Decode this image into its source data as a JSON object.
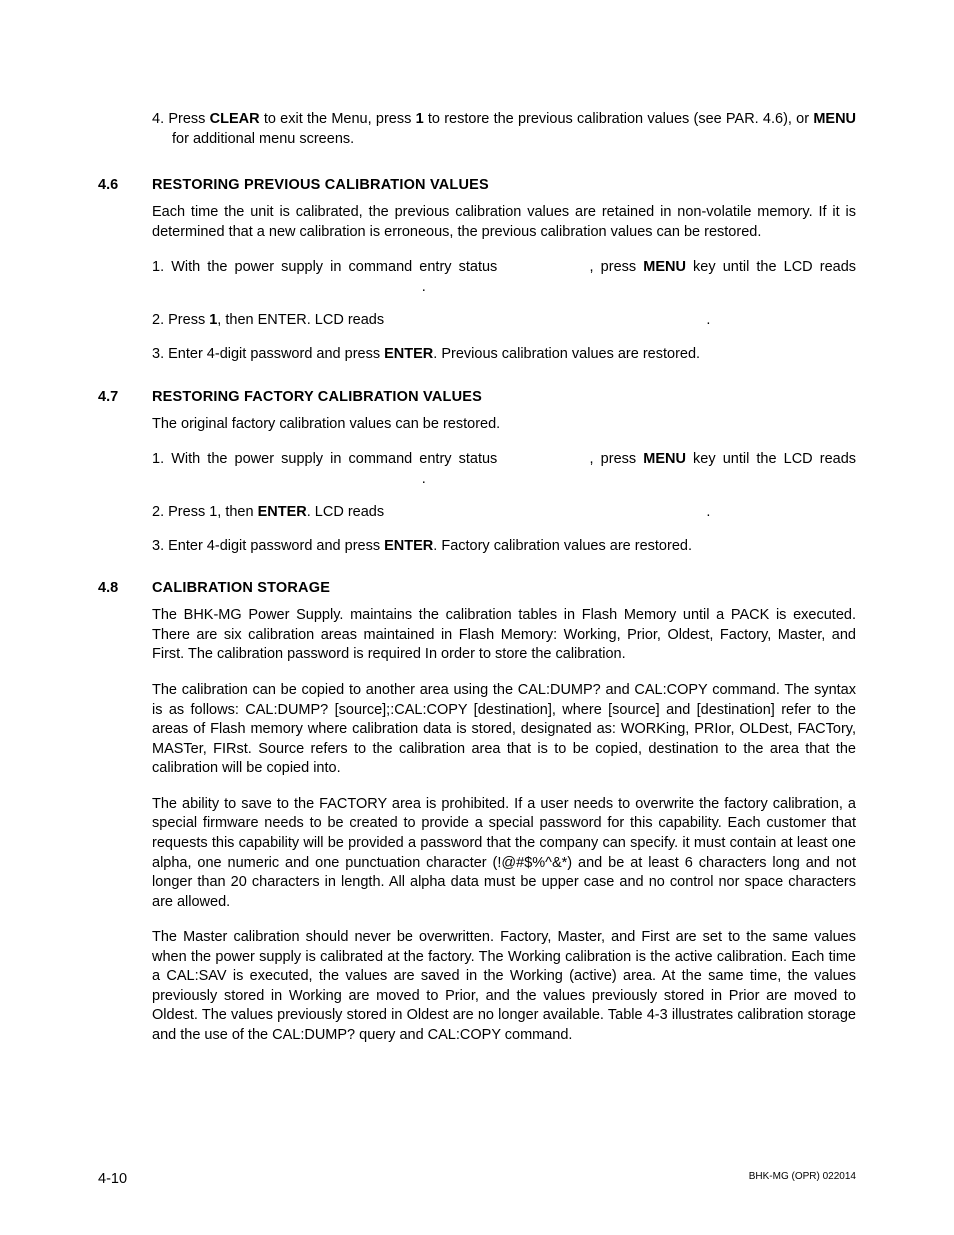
{
  "step4": {
    "num": "4.",
    "text_a": "Press ",
    "clear": "CLEAR",
    "text_b": " to exit the Menu, press ",
    "one": "1",
    "text_c": " to restore the previous calibration values (see PAR. 4.6), or ",
    "menu": "MENU",
    "text_d": " for additional menu screens."
  },
  "s46": {
    "num": "4.6",
    "title": "RESTORING PREVIOUS CALIBRATION VALUES",
    "intro": "Each time the unit is calibrated, the previous calibration values are retained in non-volatile memory. If it is determined that a new calibration is erroneous, the previous calibration values can be restored.",
    "i1": {
      "num": "1.",
      "a": "With the power supply in command entry status ",
      "gap1": "            ",
      "b": ", press ",
      "menu": "MENU",
      "c": " key until the LCD reads ",
      "gap2": "                                                              ",
      "d": "."
    },
    "i2": {
      "num": "2.",
      "a": " Press ",
      "one": "1",
      "b": ", then ENTER. LCD reads ",
      "gap": "                                                                               ",
      "c": "."
    },
    "i3": {
      "num": "3.",
      "a": "Enter 4-digit password and press ",
      "enter": "ENTER",
      "b": ". Previous calibration values are restored."
    }
  },
  "s47": {
    "num": "4.7",
    "title": "RESTORING FACTORY CALIBRATION VALUES",
    "intro": "The original factory calibration values can be restored.",
    "i1": {
      "num": "1.",
      "a": "With the power supply in command entry status ",
      "gap1": "            ",
      "b": ", press ",
      "menu": "MENU",
      "c": " key until the LCD reads ",
      "gap2": "                                                              ",
      "d": "."
    },
    "i2": {
      "num": "2.",
      "a": " Press 1, then ",
      "enter": "ENTER",
      "b": ". LCD reads ",
      "gap": "                                                                               ",
      "c": "."
    },
    "i3": {
      "num": "3.",
      "a": "Enter 4-digit password and press ",
      "enter": "ENTER",
      "b": ". Factory calibration values are restored."
    }
  },
  "s48": {
    "num": "4.8",
    "title": "CALIBRATION STORAGE",
    "p1": "The BHK-MG Power Supply. maintains the calibration tables in Flash Memory until a PACK is executed. There are six calibration areas maintained in Flash Memory: Working, Prior, Oldest, Factory, Master, and First. The calibration password is required In order to store the calibration.",
    "p2": "The calibration can be copied to another area using the CAL:DUMP? and CAL:COPY command. The syntax is as follows: CAL:DUMP? [source];:CAL:COPY [destination], where [source] and [destination] refer to the areas of Flash memory where calibration data is stored, designated as: WORKing, PRIor, OLDest, FACTory, MASTer, FIRst. Source refers to the calibration area that is to be copied, destination to the area that the calibration will be copied into.",
    "p3": "The ability to save to the FACTORY area is prohibited. If a user needs to overwrite the factory calibration, a special firmware needs to be created to provide a special password for this capability. Each customer that requests this capability will be provided a password that the company can specify. it must contain at least one alpha, one numeric and one punctuation character (!@#$%^&*) and be at least 6 characters long and not longer than 20 characters in length. All alpha data must be upper case and no control nor space characters are allowed.",
    "p4": "The Master calibration should never be overwritten. Factory, Master, and First are set to the same values when the power supply is calibrated at the factory. The Working calibration is the active calibration. Each time a CAL:SAV is executed, the values are saved in the Working (active) area. At the same time, the values previously stored in Working are moved to Prior, and the values previously stored in Prior are moved to Oldest. The values previously stored in Oldest are no longer available. Table 4-3 illustrates calibration storage and the use of the CAL:DUMP? query and CAL:COPY command."
  },
  "footer": {
    "left": "4-10",
    "right": "BHK-MG (OPR) 022014"
  }
}
